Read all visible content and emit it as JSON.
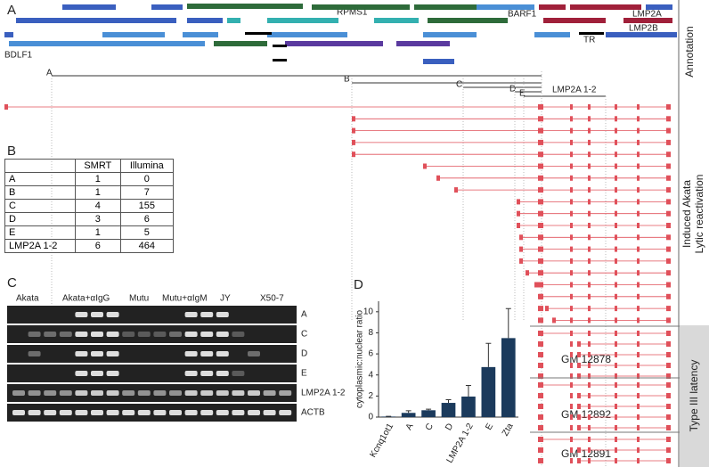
{
  "panel_labels": [
    "A",
    "B",
    "C",
    "D"
  ],
  "annotation": {
    "side_label": "Annotation",
    "genes": [
      "RPMS1",
      "BARF1",
      "LMP2A",
      "LMP2B",
      "BDLF1",
      "TR"
    ]
  },
  "isoforms": {
    "labels": [
      "A",
      "B",
      "C",
      "D",
      "E",
      "LMP2A 1-2"
    ]
  },
  "side_labels": {
    "lytic": [
      "Induced Akata",
      "Lytic reactivation"
    ],
    "latency": "Type III latency"
  },
  "cell_lines": [
    "GM 12878",
    "GM 12892",
    "GM 12891"
  ],
  "table": {
    "header": [
      "SMRT",
      "Illumina"
    ],
    "rows": [
      [
        "A",
        1,
        0
      ],
      [
        "B",
        1,
        7
      ],
      [
        "C",
        4,
        155
      ],
      [
        "D",
        3,
        6
      ],
      [
        "E",
        1,
        5
      ],
      [
        "LMP2A 1-2",
        6,
        464
      ]
    ]
  },
  "gel": {
    "lanes": [
      "Akata",
      "Akata+αIgG",
      "Mutu",
      "Mutu+αIgM",
      "JY",
      "X50-7"
    ],
    "rows": [
      "A",
      "C",
      "D",
      "E",
      "LMP2A 1-2",
      "ACTB"
    ]
  },
  "chart_data": {
    "type": "bar",
    "ylabel": "cytoplasmic:nuclear ratio",
    "categories": [
      "Kcnq1ot1",
      "A",
      "C",
      "D",
      "LMP2A 1-2",
      "E",
      "Zta"
    ],
    "values": [
      0.05,
      0.4,
      0.65,
      1.35,
      1.95,
      4.75,
      7.5
    ],
    "errors": [
      0.02,
      0.2,
      0.1,
      0.3,
      1.05,
      2.25,
      2.8
    ],
    "ylim": [
      0,
      11
    ],
    "yticks": [
      0,
      2,
      4,
      6,
      8,
      10
    ],
    "color": "#1b3a5c"
  }
}
